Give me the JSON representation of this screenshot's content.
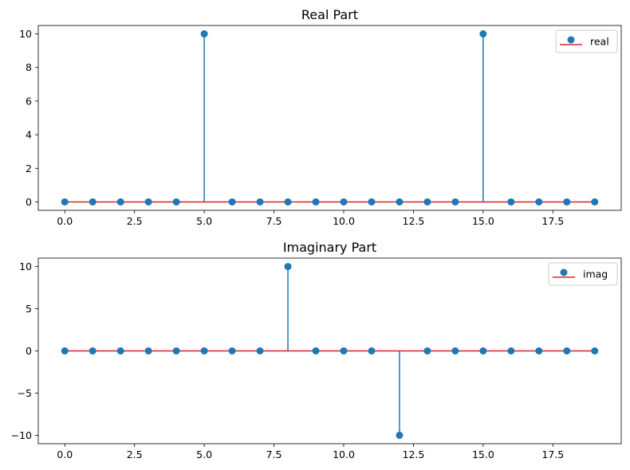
{
  "chart_data": [
    {
      "type": "stem",
      "title": "Real Part",
      "x": [
        0,
        1,
        2,
        3,
        4,
        5,
        6,
        7,
        8,
        9,
        10,
        11,
        12,
        13,
        14,
        15,
        16,
        17,
        18,
        19
      ],
      "series": [
        {
          "name": "real",
          "values": [
            0,
            0,
            0,
            0,
            0,
            10,
            0,
            0,
            0,
            0,
            0,
            0,
            0,
            0,
            0,
            10,
            0,
            0,
            0,
            0
          ]
        }
      ],
      "xlim": [
        -0.95,
        19.95
      ],
      "ylim": [
        -0.5,
        10.5
      ],
      "xticks": [
        0,
        2.5,
        5,
        7.5,
        10,
        12.5,
        15,
        17.5
      ],
      "xtick_labels": [
        "0.0",
        "2.5",
        "5.0",
        "7.5",
        "10.0",
        "12.5",
        "15.0",
        "17.5"
      ],
      "yticks": [
        0,
        2,
        4,
        6,
        8,
        10
      ],
      "ytick_labels": [
        "0",
        "2",
        "4",
        "6",
        "8",
        "10"
      ],
      "legend": "top-right",
      "grid": false
    },
    {
      "type": "stem",
      "title": "Imaginary Part",
      "x": [
        0,
        1,
        2,
        3,
        4,
        5,
        6,
        7,
        8,
        9,
        10,
        11,
        12,
        13,
        14,
        15,
        16,
        17,
        18,
        19
      ],
      "series": [
        {
          "name": "imag",
          "values": [
            0,
            0,
            0,
            0,
            0,
            0,
            0,
            0,
            10,
            0,
            0,
            0,
            -10,
            0,
            0,
            0,
            0,
            0,
            0,
            0
          ]
        }
      ],
      "xlim": [
        -0.95,
        19.95
      ],
      "ylim": [
        -11,
        11
      ],
      "xticks": [
        0,
        2.5,
        5,
        7.5,
        10,
        12.5,
        15,
        17.5
      ],
      "xtick_labels": [
        "0.0",
        "2.5",
        "5.0",
        "7.5",
        "10.0",
        "12.5",
        "15.0",
        "17.5"
      ],
      "yticks": [
        -10,
        -5,
        0,
        5,
        10
      ],
      "ytick_labels": [
        "−10",
        "−5",
        "0",
        "5",
        "10"
      ],
      "legend": "top-right",
      "grid": false
    }
  ],
  "colors": {
    "marker": "#1f77b4",
    "stem": "#1f77b4",
    "baseline": "#d62728",
    "axes": "#000000"
  }
}
